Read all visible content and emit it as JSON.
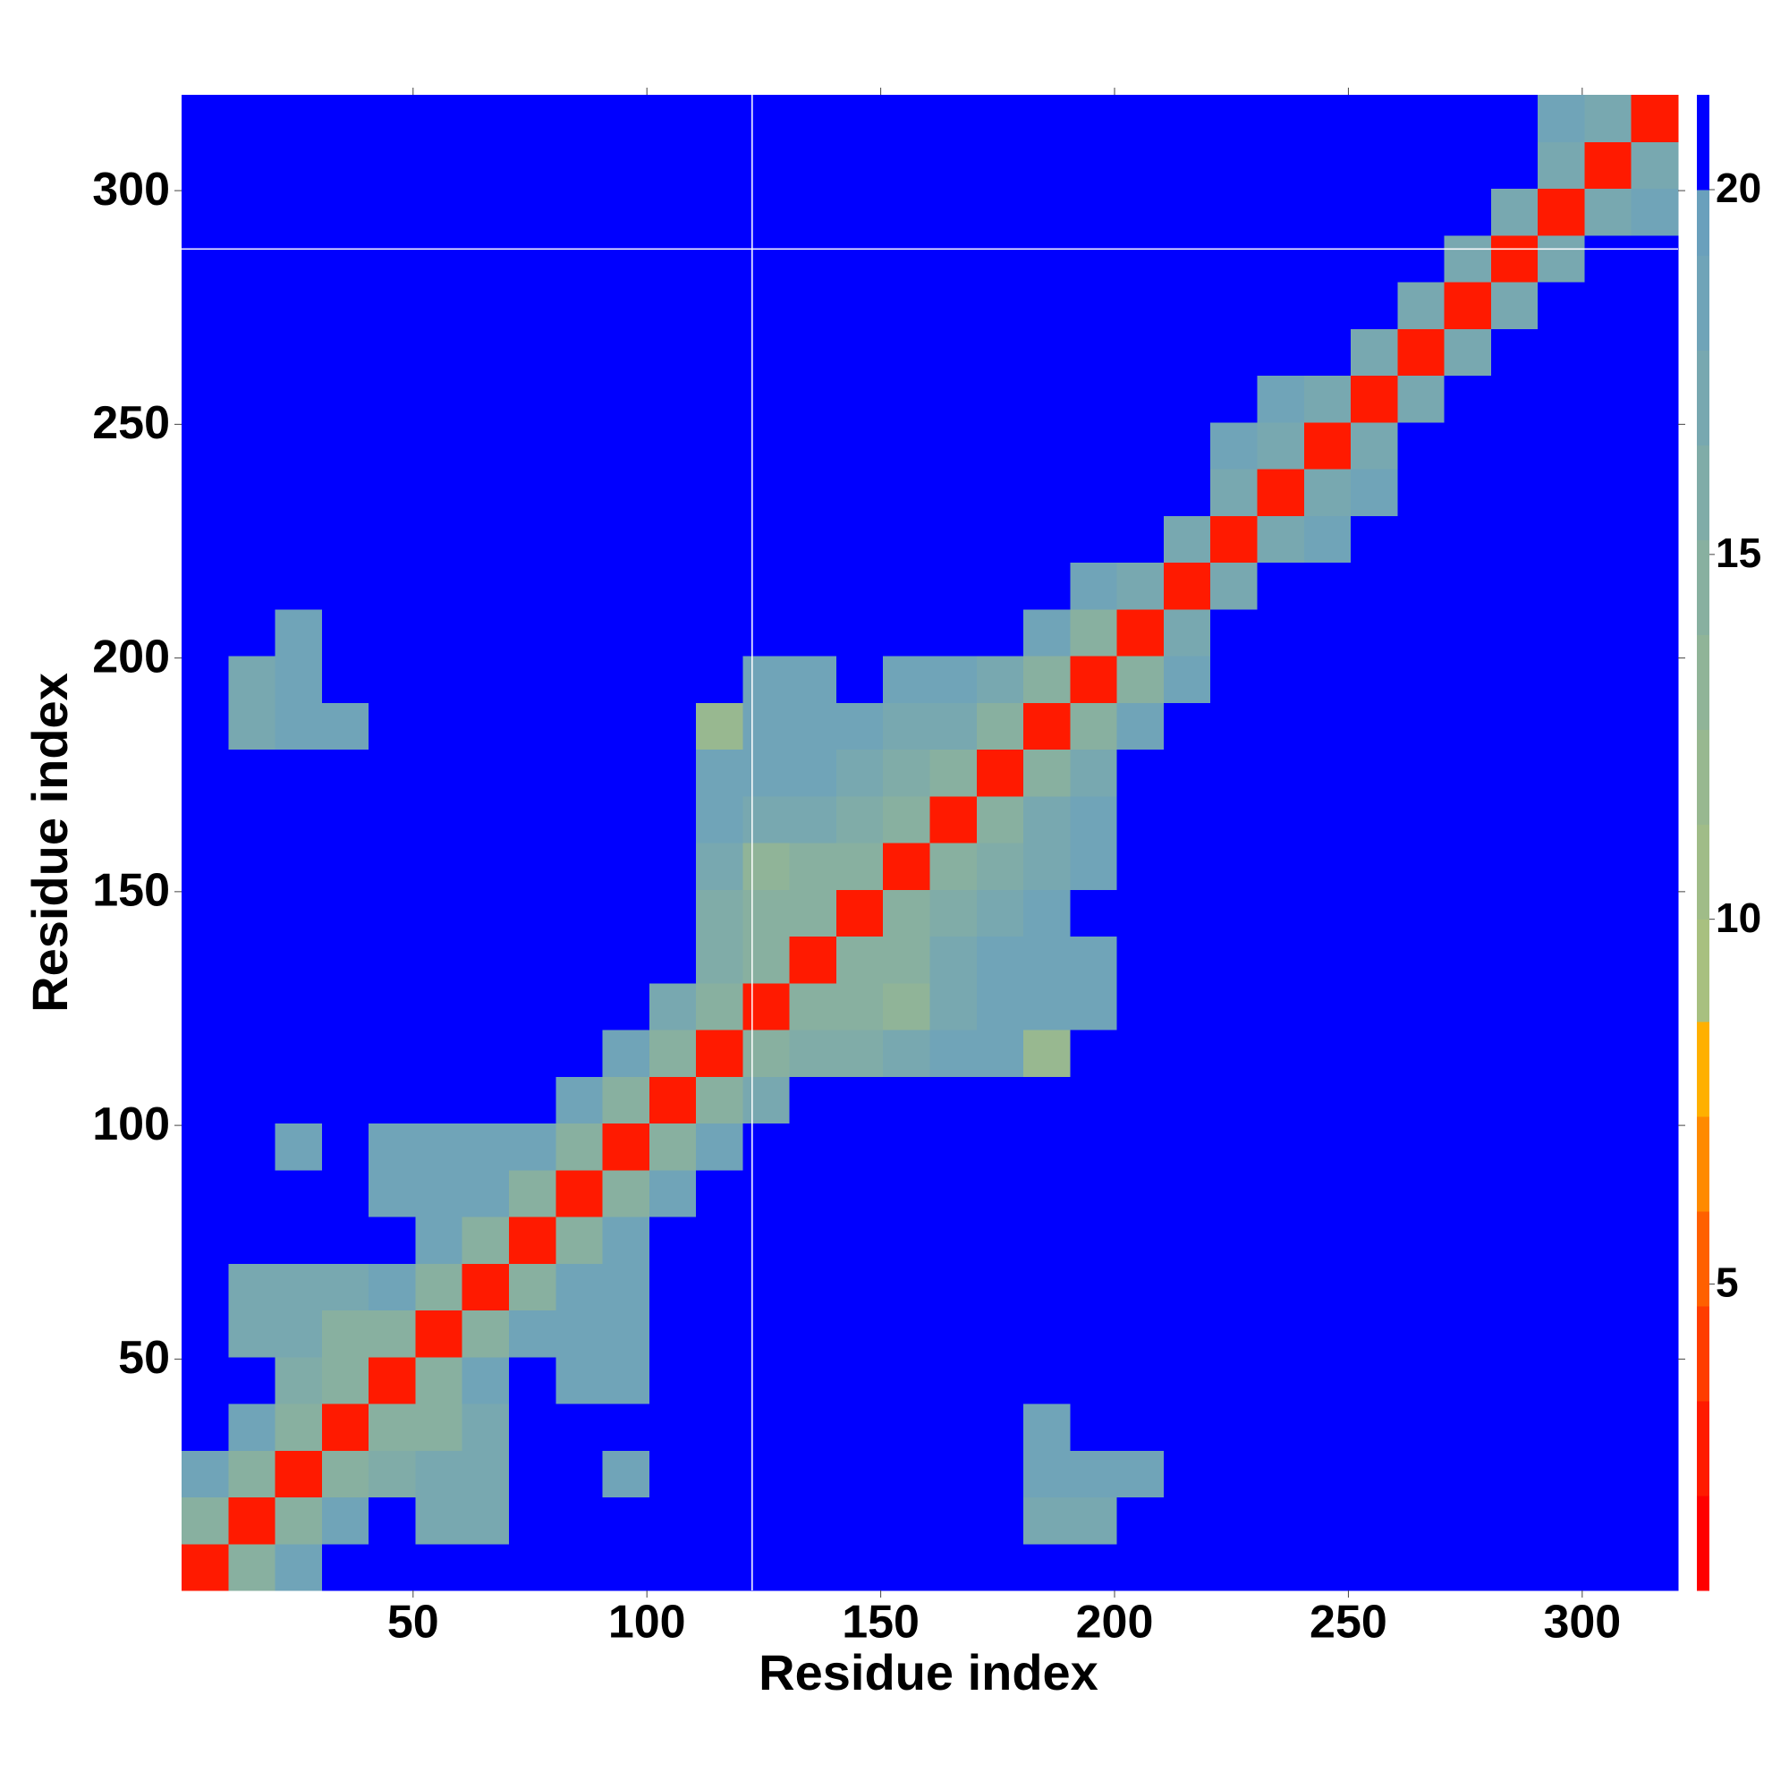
{
  "chart_data": {
    "type": "heatmap",
    "x_label": "Residue index",
    "y_label": "Residue index",
    "xbins": [
      0.5,
      10.5,
      20.5,
      30.5,
      40.5,
      50.5,
      60.5,
      70.5,
      80.5,
      90.5,
      100.5,
      110.5,
      120.5,
      130.5,
      140.5,
      150.5,
      160.5,
      170.5,
      180.5,
      190.5,
      200.5,
      210.5,
      220.5,
      230.5,
      240.5,
      250.5,
      260.5,
      270.5,
      280.5,
      290.5,
      300.5,
      310.5,
      320.5
    ],
    "ybins": [
      0.5,
      10.5,
      20.5,
      30.5,
      40.5,
      50.5,
      60.5,
      70.5,
      80.5,
      90.5,
      100.5,
      110.5,
      120.5,
      130.5,
      140.5,
      150.5,
      160.5,
      170.5,
      180.5,
      190.5,
      200.5,
      210.5,
      220.5,
      230.5,
      240.5,
      250.5,
      260.5,
      270.5,
      280.5,
      290.5,
      300.5,
      310.5,
      320.5
    ],
    "z": [
      [
        3,
        15,
        18,
        21,
        21,
        21,
        21,
        21,
        21,
        21,
        21,
        21,
        21,
        21,
        21,
        21,
        21,
        21,
        20,
        21,
        21,
        21,
        21,
        21,
        21,
        21,
        21,
        21,
        21,
        21,
        21,
        21
      ],
      [
        15,
        3,
        15,
        18,
        21,
        17,
        17,
        21,
        21,
        21,
        21,
        21,
        21,
        21,
        21,
        21,
        21,
        21,
        17,
        17,
        20,
        21,
        21,
        21,
        21,
        21,
        21,
        21,
        21,
        21,
        21,
        21
      ],
      [
        18,
        15,
        3,
        15,
        16,
        17,
        17,
        21,
        21,
        18,
        21,
        21,
        21,
        21,
        21,
        21,
        21,
        21,
        18,
        18,
        19,
        21,
        21,
        21,
        21,
        21,
        21,
        21,
        21,
        21,
        21,
        21
      ],
      [
        21,
        18,
        15,
        3,
        15,
        14,
        17,
        21,
        21,
        21,
        21,
        21,
        21,
        21,
        21,
        21,
        21,
        21,
        19,
        20,
        21,
        21,
        21,
        21,
        21,
        21,
        21,
        21,
        21,
        21,
        21,
        21
      ],
      [
        21,
        21,
        16,
        15,
        3,
        15,
        18,
        21,
        18,
        18,
        21,
        21,
        21,
        21,
        21,
        21,
        21,
        21,
        21,
        21,
        21,
        21,
        21,
        21,
        21,
        21,
        21,
        21,
        21,
        21,
        21,
        21
      ],
      [
        21,
        17,
        17,
        14,
        15,
        3,
        15,
        18,
        18,
        18,
        21,
        21,
        21,
        21,
        21,
        21,
        21,
        21,
        20,
        21,
        21,
        21,
        21,
        21,
        21,
        21,
        21,
        21,
        21,
        21,
        21,
        21
      ],
      [
        21,
        17,
        17,
        17,
        18,
        15,
        3,
        15,
        18,
        18,
        21,
        21,
        21,
        21,
        21,
        21,
        21,
        21,
        20,
        20,
        21,
        21,
        21,
        21,
        21,
        21,
        21,
        21,
        21,
        21,
        21,
        21
      ],
      [
        21,
        21,
        21,
        21,
        21,
        18,
        15,
        3,
        15,
        18,
        21,
        21,
        21,
        21,
        21,
        21,
        21,
        21,
        21,
        20,
        21,
        21,
        21,
        21,
        21,
        21,
        21,
        21,
        21,
        21,
        21,
        21
      ],
      [
        21,
        21,
        21,
        21,
        18,
        18,
        18,
        15,
        3,
        15,
        18,
        21,
        21,
        21,
        21,
        21,
        21,
        21,
        21,
        21,
        21,
        21,
        21,
        21,
        21,
        21,
        21,
        21,
        21,
        21,
        21,
        21
      ],
      [
        21,
        21,
        18,
        21,
        18,
        18,
        18,
        18,
        15,
        3,
        15,
        18,
        21,
        21,
        21,
        21,
        21,
        21,
        21,
        21,
        21,
        21,
        21,
        21,
        21,
        21,
        21,
        21,
        21,
        21,
        21,
        21
      ],
      [
        21,
        21,
        21,
        21,
        21,
        21,
        21,
        21,
        18,
        15,
        3,
        15,
        17,
        21,
        21,
        21,
        21,
        21,
        21,
        21,
        21,
        21,
        21,
        21,
        21,
        21,
        21,
        21,
        21,
        21,
        21,
        21
      ],
      [
        21,
        21,
        21,
        21,
        21,
        21,
        21,
        21,
        21,
        18,
        15,
        3,
        15,
        16,
        16,
        17,
        19,
        19,
        12,
        21,
        21,
        21,
        21,
        21,
        21,
        21,
        21,
        21,
        21,
        21,
        21,
        21
      ],
      [
        21,
        21,
        21,
        21,
        21,
        21,
        21,
        21,
        21,
        21,
        17,
        15,
        3,
        15,
        14,
        13,
        17,
        19,
        18,
        19,
        21,
        21,
        21,
        21,
        21,
        21,
        21,
        21,
        21,
        21,
        21,
        21
      ],
      [
        21,
        21,
        21,
        21,
        21,
        21,
        21,
        21,
        21,
        21,
        21,
        16,
        15,
        3,
        15,
        14,
        17,
        18,
        18,
        19,
        21,
        21,
        21,
        21,
        21,
        21,
        21,
        21,
        21,
        21,
        21,
        21
      ],
      [
        21,
        21,
        21,
        21,
        21,
        21,
        21,
        21,
        21,
        21,
        21,
        16,
        14,
        15,
        3,
        15,
        16,
        17,
        18,
        20,
        21,
        21,
        21,
        21,
        21,
        21,
        21,
        21,
        21,
        21,
        21,
        21
      ],
      [
        21,
        21,
        21,
        21,
        21,
        21,
        21,
        21,
        21,
        21,
        21,
        17,
        13,
        14,
        15,
        3,
        15,
        16,
        17,
        19,
        21,
        21,
        21,
        21,
        21,
        21,
        21,
        21,
        21,
        21,
        21,
        21
      ],
      [
        21,
        21,
        21,
        21,
        21,
        21,
        21,
        21,
        21,
        21,
        21,
        19,
        17,
        17,
        16,
        15,
        3,
        15,
        17,
        19,
        21,
        21,
        21,
        21,
        21,
        21,
        21,
        21,
        21,
        21,
        21,
        21
      ],
      [
        21,
        21,
        21,
        21,
        21,
        21,
        21,
        21,
        21,
        21,
        21,
        19,
        19,
        18,
        17,
        16,
        15,
        3,
        15,
        17,
        21,
        21,
        21,
        21,
        21,
        21,
        21,
        21,
        21,
        21,
        21,
        21
      ],
      [
        20,
        17,
        18,
        19,
        21,
        20,
        20,
        21,
        21,
        21,
        21,
        12,
        18,
        18,
        18,
        17,
        17,
        15,
        3,
        15,
        18,
        21,
        21,
        21,
        21,
        21,
        21,
        21,
        21,
        21,
        21,
        21
      ],
      [
        21,
        17,
        18,
        20,
        21,
        21,
        20,
        20,
        21,
        21,
        21,
        21,
        19,
        19,
        20,
        19,
        19,
        17,
        15,
        3,
        15,
        18,
        21,
        21,
        21,
        21,
        21,
        21,
        21,
        21,
        21,
        21
      ],
      [
        21,
        20,
        19,
        21,
        21,
        21,
        21,
        21,
        21,
        21,
        21,
        21,
        21,
        21,
        21,
        21,
        21,
        21,
        18,
        15,
        3,
        17,
        21,
        21,
        21,
        21,
        21,
        21,
        21,
        21,
        21,
        21
      ],
      [
        21,
        21,
        21,
        21,
        21,
        21,
        21,
        21,
        21,
        21,
        21,
        21,
        21,
        21,
        21,
        21,
        21,
        21,
        21,
        18,
        17,
        3,
        17,
        21,
        21,
        21,
        21,
        21,
        21,
        21,
        21,
        21
      ],
      [
        21,
        21,
        21,
        21,
        21,
        21,
        21,
        21,
        21,
        21,
        21,
        21,
        21,
        21,
        21,
        21,
        21,
        21,
        21,
        21,
        21,
        17,
        3,
        17,
        19,
        21,
        21,
        21,
        21,
        21,
        21,
        21
      ],
      [
        21,
        21,
        21,
        21,
        21,
        21,
        21,
        21,
        21,
        21,
        21,
        21,
        21,
        21,
        21,
        21,
        21,
        21,
        21,
        21,
        21,
        21,
        17,
        3,
        17,
        19,
        21,
        21,
        21,
        21,
        21,
        21
      ],
      [
        21,
        21,
        21,
        21,
        21,
        21,
        21,
        21,
        21,
        21,
        21,
        21,
        21,
        21,
        21,
        21,
        21,
        21,
        21,
        21,
        21,
        21,
        19,
        17,
        3,
        17,
        21,
        21,
        21,
        21,
        21,
        21
      ],
      [
        21,
        21,
        21,
        21,
        21,
        21,
        21,
        21,
        21,
        21,
        21,
        21,
        21,
        21,
        21,
        21,
        21,
        21,
        21,
        21,
        21,
        21,
        21,
        19,
        17,
        3,
        17,
        21,
        21,
        21,
        21,
        21
      ],
      [
        21,
        21,
        21,
        21,
        21,
        21,
        21,
        21,
        21,
        21,
        21,
        21,
        21,
        21,
        21,
        21,
        21,
        21,
        21,
        21,
        21,
        21,
        21,
        21,
        21,
        17,
        3,
        17,
        21,
        21,
        21,
        21
      ],
      [
        21,
        21,
        21,
        21,
        21,
        21,
        21,
        21,
        21,
        21,
        21,
        21,
        21,
        21,
        21,
        21,
        21,
        21,
        21,
        21,
        21,
        21,
        21,
        21,
        21,
        21,
        17,
        3,
        17,
        21,
        21,
        21
      ],
      [
        21,
        21,
        21,
        21,
        21,
        21,
        21,
        21,
        21,
        21,
        21,
        21,
        21,
        21,
        21,
        21,
        21,
        21,
        21,
        21,
        21,
        21,
        21,
        21,
        21,
        21,
        21,
        17,
        3,
        17,
        21,
        21
      ],
      [
        21,
        21,
        21,
        21,
        21,
        21,
        21,
        21,
        21,
        21,
        21,
        21,
        21,
        21,
        21,
        21,
        21,
        21,
        21,
        21,
        21,
        21,
        21,
        21,
        21,
        21,
        21,
        21,
        17,
        3,
        17,
        19
      ],
      [
        21,
        21,
        21,
        21,
        21,
        21,
        21,
        21,
        21,
        21,
        21,
        21,
        21,
        21,
        21,
        21,
        21,
        21,
        21,
        21,
        21,
        21,
        21,
        21,
        21,
        21,
        21,
        21,
        21,
        17,
        3,
        17
      ],
      [
        21,
        21,
        21,
        21,
        21,
        21,
        21,
        21,
        21,
        21,
        21,
        21,
        21,
        21,
        21,
        21,
        21,
        21,
        21,
        21,
        21,
        21,
        21,
        21,
        21,
        21,
        21,
        21,
        21,
        19,
        17,
        3
      ]
    ],
    "xlim": [
      0.5,
      320.5
    ],
    "ylim": [
      0.5,
      320.5
    ],
    "xticks": [
      50,
      100,
      150,
      200,
      250,
      300
    ],
    "yticks": [
      50,
      100,
      150,
      200,
      250,
      300
    ],
    "vlines": [
      122.5
    ],
    "hlines": [
      287.5
    ],
    "line_color": "#ffffff",
    "colorbar_edges": [
      0.8,
      2.1,
      3.4,
      4.7,
      6,
      7.3,
      8.6,
      10,
      11.3,
      12.6,
      13.9,
      15.2,
      16.5,
      17.8,
      19.1,
      20,
      21.3
    ],
    "colorbar_colors": [
      "#ff0000",
      "#ff1a00",
      "#ff3d00",
      "#ff6000",
      "#ff8a00",
      "#ffb000",
      "#a8c080",
      "#a0bc88",
      "#98b890",
      "#90b498",
      "#88b0a0",
      "#80aca8",
      "#78a8b0",
      "#70a4b8",
      "#6aa0bc",
      "#0000ff"
    ],
    "colorbar_ticks": [
      5,
      10,
      15,
      20
    ]
  }
}
